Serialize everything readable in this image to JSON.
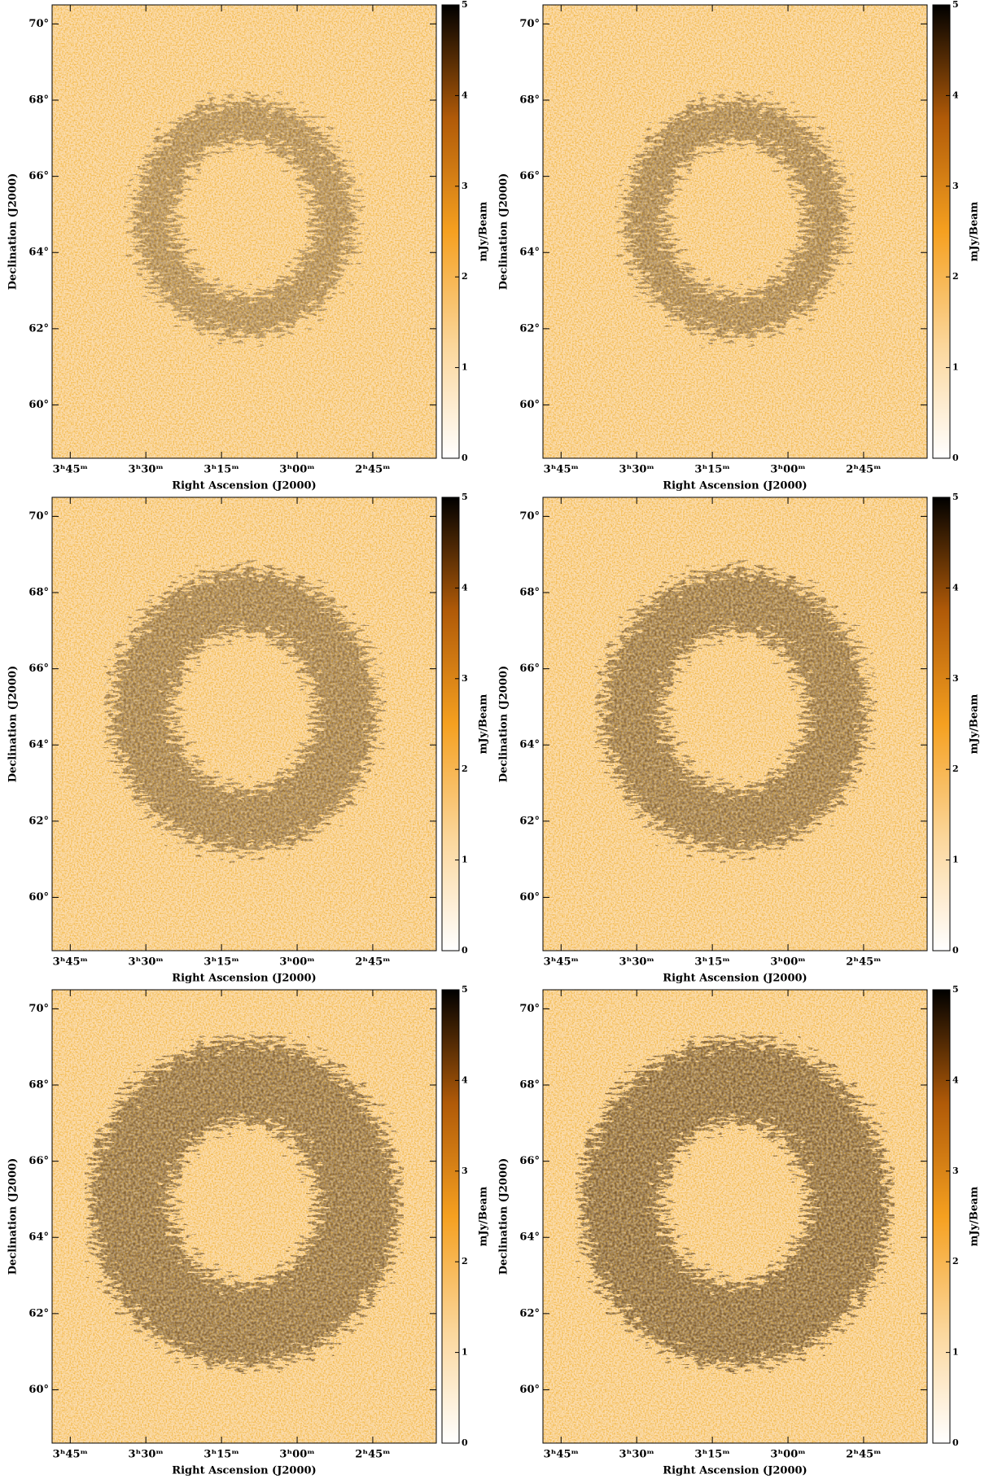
{
  "chart_data": [
    {
      "type": "image",
      "xlabel": "Right Ascension (J2000)",
      "ylabel": "Declination (J2000)",
      "colorbar_label": "mJy/Beam",
      "xlim": [
        3.81,
        2.54
      ],
      "xticks": [
        {
          "value": 3.75,
          "label": "3ʰ45ᵐ"
        },
        {
          "value": 3.5,
          "label": "3ʰ30ᵐ"
        },
        {
          "value": 3.25,
          "label": "3ʰ15ᵐ"
        },
        {
          "value": 3.0,
          "label": "3ʰ00ᵐ"
        },
        {
          "value": 2.75,
          "label": "2ʰ45ᵐ"
        }
      ],
      "ylim": [
        58.6,
        70.5
      ],
      "yticks": [
        {
          "value": 70,
          "label": "70°"
        },
        {
          "value": 68,
          "label": "68°"
        },
        {
          "value": 66,
          "label": "66°"
        },
        {
          "value": 64,
          "label": "64°"
        },
        {
          "value": 62,
          "label": "62°"
        },
        {
          "value": 60,
          "label": "60°"
        }
      ],
      "clim": [
        0,
        5
      ],
      "cticks": [
        0,
        1,
        2,
        3,
        4,
        5
      ]
    },
    {
      "type": "image",
      "xlabel": "Right Ascension (J2000)",
      "ylabel": "Declination (J2000)",
      "colorbar_label": "mJy/Beam",
      "xlim": [
        3.81,
        2.54
      ],
      "xticks": [
        {
          "value": 3.75,
          "label": "3ʰ45ᵐ"
        },
        {
          "value": 3.5,
          "label": "3ʰ30ᵐ"
        },
        {
          "value": 3.25,
          "label": "3ʰ15ᵐ"
        },
        {
          "value": 3.0,
          "label": "3ʰ00ᵐ"
        },
        {
          "value": 2.75,
          "label": "2ʰ45ᵐ"
        }
      ],
      "ylim": [
        58.6,
        70.5
      ],
      "yticks": [
        {
          "value": 70,
          "label": "70°"
        },
        {
          "value": 68,
          "label": "68°"
        },
        {
          "value": 66,
          "label": "66°"
        },
        {
          "value": 64,
          "label": "64°"
        },
        {
          "value": 62,
          "label": "62°"
        },
        {
          "value": 60,
          "label": "60°"
        }
      ],
      "clim": [
        0,
        5
      ],
      "cticks": [
        0,
        1,
        2,
        3,
        4,
        5
      ]
    },
    {
      "type": "image",
      "xlabel": "Right Ascension (J2000)",
      "ylabel": "Declination (J2000)",
      "colorbar_label": "mJy/Beam",
      "xlim": [
        3.81,
        2.54
      ],
      "xticks": [
        {
          "value": 3.75,
          "label": "3ʰ45ᵐ"
        },
        {
          "value": 3.5,
          "label": "3ʰ30ᵐ"
        },
        {
          "value": 3.25,
          "label": "3ʰ15ᵐ"
        },
        {
          "value": 3.0,
          "label": "3ʰ00ᵐ"
        },
        {
          "value": 2.75,
          "label": "2ʰ45ᵐ"
        }
      ],
      "ylim": [
        58.6,
        70.5
      ],
      "yticks": [
        {
          "value": 70,
          "label": "70°"
        },
        {
          "value": 68,
          "label": "68°"
        },
        {
          "value": 66,
          "label": "66°"
        },
        {
          "value": 64,
          "label": "64°"
        },
        {
          "value": 62,
          "label": "62°"
        },
        {
          "value": 60,
          "label": "60°"
        }
      ],
      "clim": [
        0,
        5
      ],
      "cticks": [
        0,
        1,
        2,
        3,
        4,
        5
      ]
    },
    {
      "type": "image",
      "xlabel": "Right Ascension (J2000)",
      "ylabel": "Declination (J2000)",
      "colorbar_label": "mJy/Beam",
      "xlim": [
        3.81,
        2.54
      ],
      "xticks": [
        {
          "value": 3.75,
          "label": "3ʰ45ᵐ"
        },
        {
          "value": 3.5,
          "label": "3ʰ30ᵐ"
        },
        {
          "value": 3.25,
          "label": "3ʰ15ᵐ"
        },
        {
          "value": 3.0,
          "label": "3ʰ00ᵐ"
        },
        {
          "value": 2.75,
          "label": "2ʰ45ᵐ"
        }
      ],
      "ylim": [
        58.6,
        70.5
      ],
      "yticks": [
        {
          "value": 70,
          "label": "70°"
        },
        {
          "value": 68,
          "label": "68°"
        },
        {
          "value": 66,
          "label": "66°"
        },
        {
          "value": 64,
          "label": "64°"
        },
        {
          "value": 62,
          "label": "62°"
        },
        {
          "value": 60,
          "label": "60°"
        }
      ],
      "clim": [
        0,
        5
      ],
      "cticks": [
        0,
        1,
        2,
        3,
        4,
        5
      ]
    },
    {
      "type": "image",
      "xlabel": "Right Ascension (J2000)",
      "ylabel": "Declination (J2000)",
      "colorbar_label": "mJy/Beam",
      "xlim": [
        3.81,
        2.54
      ],
      "xticks": [
        {
          "value": 3.75,
          "label": "3ʰ45ᵐ"
        },
        {
          "value": 3.5,
          "label": "3ʰ30ᵐ"
        },
        {
          "value": 3.25,
          "label": "3ʰ15ᵐ"
        },
        {
          "value": 3.0,
          "label": "3ʰ00ᵐ"
        },
        {
          "value": 2.75,
          "label": "2ʰ45ᵐ"
        }
      ],
      "ylim": [
        58.6,
        70.5
      ],
      "yticks": [
        {
          "value": 70,
          "label": "70°"
        },
        {
          "value": 68,
          "label": "68°"
        },
        {
          "value": 66,
          "label": "66°"
        },
        {
          "value": 64,
          "label": "64°"
        },
        {
          "value": 62,
          "label": "62°"
        },
        {
          "value": 60,
          "label": "60°"
        }
      ],
      "clim": [
        0,
        5
      ],
      "cticks": [
        0,
        1,
        2,
        3,
        4,
        5
      ]
    },
    {
      "type": "image",
      "xlabel": "Right Ascension (J2000)",
      "ylabel": "Declination (J2000)",
      "colorbar_label": "mJy/Beam",
      "xlim": [
        3.81,
        2.54
      ],
      "xticks": [
        {
          "value": 3.75,
          "label": "3ʰ45ᵐ"
        },
        {
          "value": 3.5,
          "label": "3ʰ30ᵐ"
        },
        {
          "value": 3.25,
          "label": "3ʰ15ᵐ"
        },
        {
          "value": 3.0,
          "label": "3ʰ00ᵐ"
        },
        {
          "value": 2.75,
          "label": "2ʰ45ᵐ"
        }
      ],
      "ylim": [
        58.6,
        70.5
      ],
      "yticks": [
        {
          "value": 70,
          "label": "70°"
        },
        {
          "value": 68,
          "label": "68°"
        },
        {
          "value": 66,
          "label": "66°"
        },
        {
          "value": 64,
          "label": "64°"
        },
        {
          "value": 62,
          "label": "62°"
        },
        {
          "value": 60,
          "label": "60°"
        }
      ],
      "clim": [
        0,
        5
      ],
      "cticks": [
        0,
        1,
        2,
        3,
        4,
        5
      ]
    }
  ]
}
